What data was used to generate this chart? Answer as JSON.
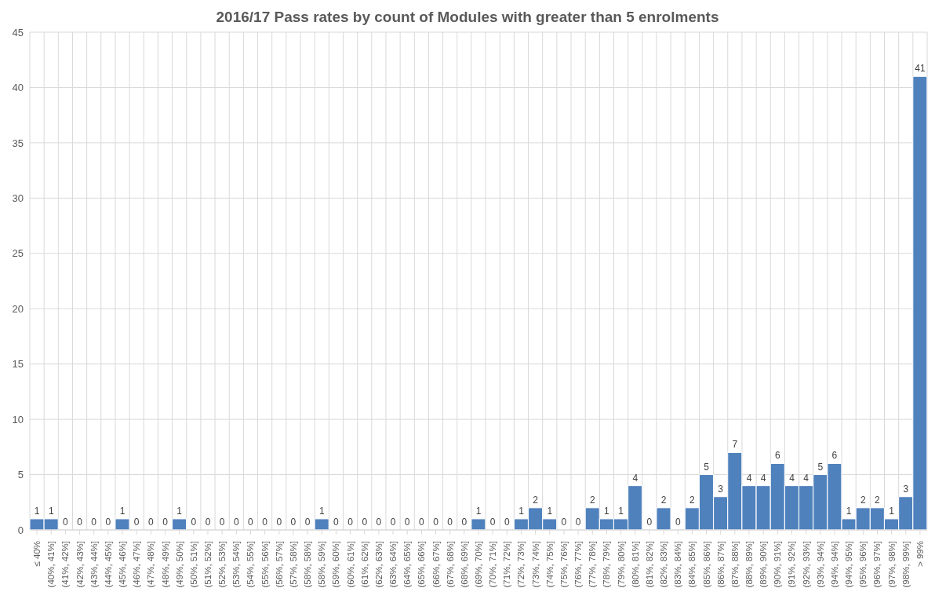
{
  "chart_data": {
    "type": "bar",
    "title": "2016/17 Pass rates by count of Modules with greater than 5 enrolments",
    "categories": [
      "≤ 40%",
      "(40%, 41%]",
      "(41%, 42%]",
      "(42%, 43%]",
      "(43%, 44%]",
      "(44%, 45%]",
      "(45%, 46%]",
      "(46%, 47%]",
      "(47%, 48%]",
      "(48%, 49%]",
      "(49%, 50%]",
      "(50%, 51%]",
      "(51%, 52%]",
      "(52%, 53%]",
      "(53%, 54%]",
      "(54%, 55%]",
      "(55%, 56%]",
      "(56%, 57%]",
      "(57%, 58%]",
      "(58%, 58%]",
      "(58%, 59%]",
      "(59%, 60%]",
      "(60%, 61%]",
      "(61%, 62%]",
      "(62%, 63%]",
      "(63%, 64%]",
      "(64%, 65%]",
      "(65%, 66%]",
      "(66%, 67%]",
      "(67%, 68%]",
      "(68%, 69%]",
      "(69%, 70%]",
      "(70%, 71%]",
      "(71%, 72%]",
      "(72%, 73%]",
      "(73%, 74%]",
      "(74%, 75%]",
      "(75%, 76%]",
      "(76%, 77%]",
      "(77%, 78%]",
      "(78%, 79%]",
      "(79%, 80%]",
      "(80%, 81%]",
      "(81%, 82%]",
      "(82%, 83%]",
      "(83%, 84%]",
      "(84%, 85%]",
      "(85%, 86%]",
      "(86%, 87%]",
      "(87%, 88%]",
      "(88%, 89%]",
      "(89%, 90%]",
      "(90%, 91%]",
      "(91%, 92%]",
      "(92%, 93%]",
      "(93%, 94%]",
      "(94%, 94%]",
      "(94%, 95%]",
      "(95%, 96%]",
      "(96%, 97%]",
      "(97%, 98%]",
      "(98%, 99%]",
      "> 99%"
    ],
    "values": [
      1,
      1,
      0,
      0,
      0,
      0,
      1,
      0,
      0,
      0,
      1,
      0,
      0,
      0,
      0,
      0,
      0,
      0,
      0,
      0,
      1,
      0,
      0,
      0,
      0,
      0,
      0,
      0,
      0,
      0,
      0,
      1,
      0,
      0,
      1,
      2,
      1,
      0,
      0,
      2,
      1,
      1,
      4,
      0,
      2,
      0,
      2,
      5,
      3,
      7,
      4,
      4,
      6,
      4,
      4,
      5,
      6,
      1,
      2,
      2,
      1,
      3,
      41
    ],
    "color": "#4f81bd",
    "ylim": [
      0,
      45
    ],
    "yticks": [
      0,
      5,
      10,
      15,
      20,
      25,
      30,
      35,
      40,
      45
    ],
    "grid": true,
    "data_labels": true
  }
}
